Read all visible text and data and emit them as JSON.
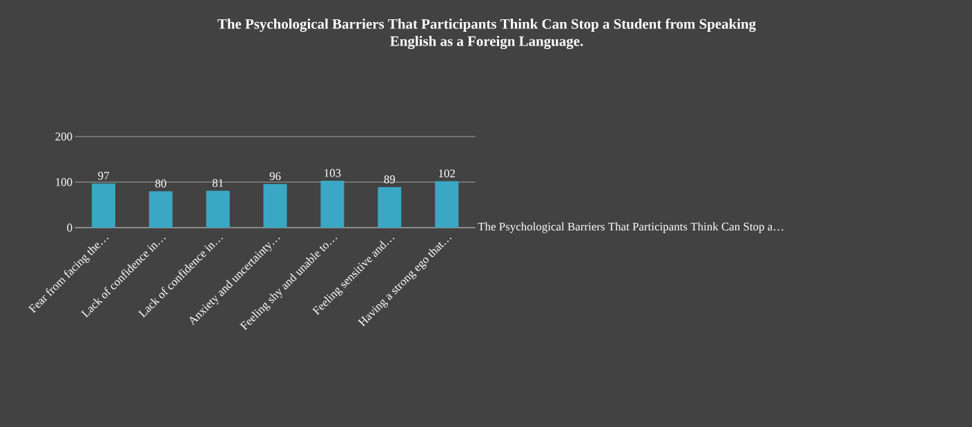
{
  "chart_data": {
    "type": "bar",
    "title": "The Psychological Barriers That Participants Think Can Stop a Student from Speaking\nEnglish as a Foreign Language.",
    "categories": [
      "Fear from facing the…",
      "Lack of confidence in…",
      "Lack of confidence in…",
      "Anxiety and uncertainty…",
      "Feeling shy and unable to…",
      "Feeling sensitive and…",
      "Having a strong ego that…"
    ],
    "series": [
      {
        "name": "The Psychological Barriers That Participants Think Can Stop a…",
        "color": "#3aa7c4",
        "values": [
          97,
          80,
          81,
          96,
          103,
          89,
          102
        ]
      }
    ],
    "ylim": [
      0,
      200
    ],
    "yticks": [
      0,
      100,
      200
    ],
    "grid": "y",
    "data_labels": true
  }
}
